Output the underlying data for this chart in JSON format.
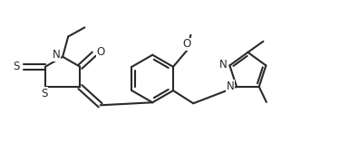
{
  "bg_color": "#ffffff",
  "line_color": "#2a2a2a",
  "line_width": 1.5,
  "figsize": [
    3.85,
    1.78
  ],
  "dpi": 100,
  "xlim": [
    0,
    9.5
  ],
  "ylim": [
    0,
    4.4
  ]
}
